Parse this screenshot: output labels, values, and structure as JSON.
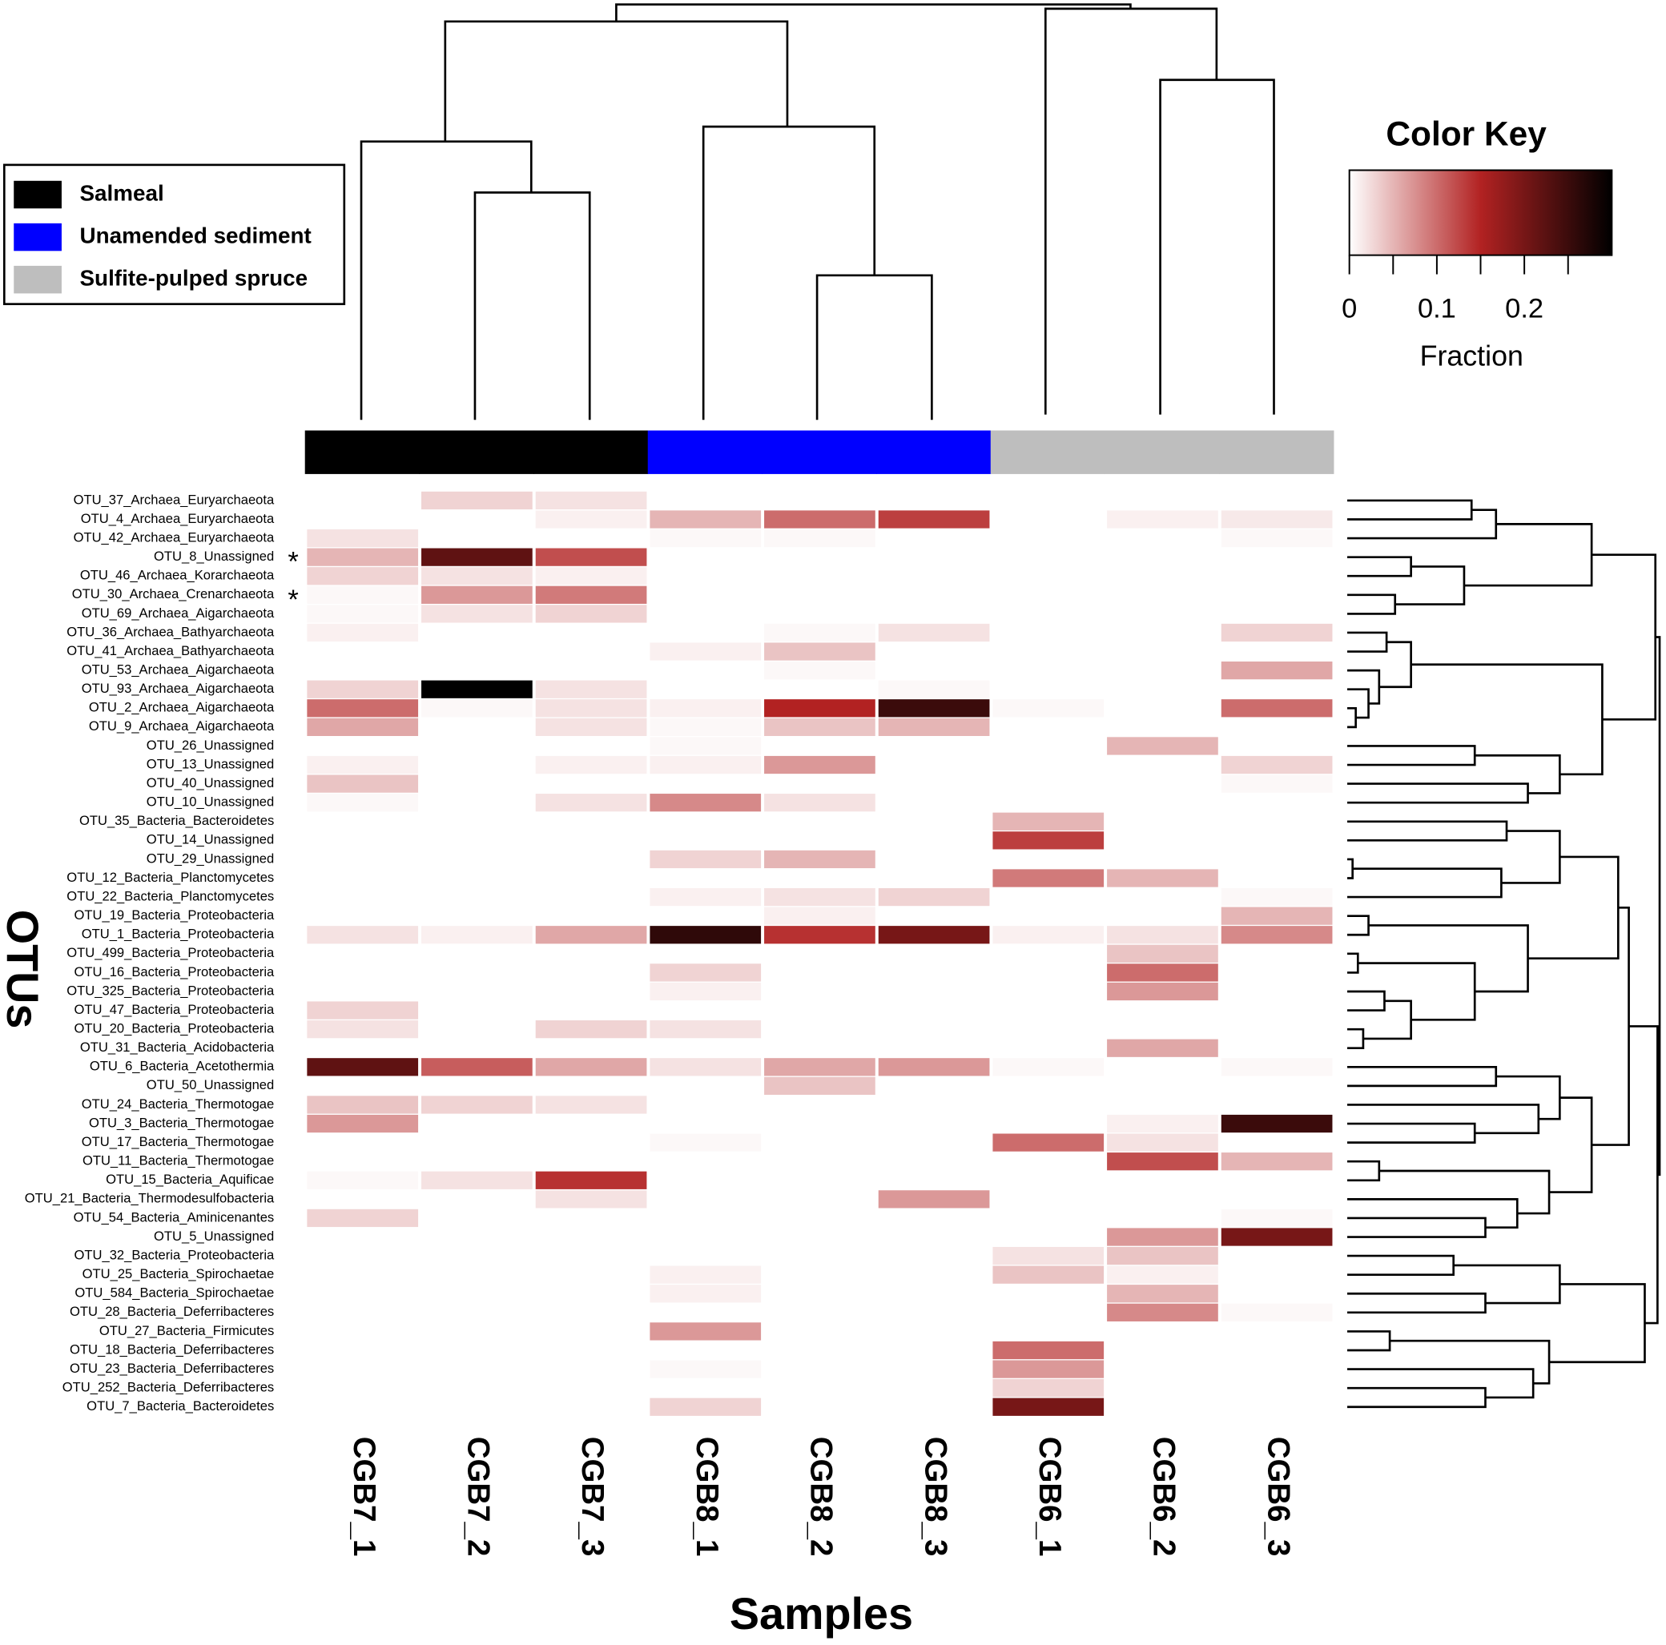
{
  "chart_data": {
    "type": "heatmap",
    "x_label": "Samples",
    "y_label": "OTUs",
    "columns": [
      "CGB7_1",
      "CGB7_2",
      "CGB7_3",
      "CGB8_1",
      "CGB8_2",
      "CGB8_3",
      "CGB6_1",
      "CGB6_2",
      "CGB6_3"
    ],
    "column_groups": [
      "Salmeal",
      "Salmeal",
      "Salmeal",
      "Unamended sediment",
      "Unamended sediment",
      "Unamended sediment",
      "Sulfite-pulped spruce",
      "Sulfite-pulped spruce",
      "Sulfite-pulped spruce"
    ],
    "legend": [
      {
        "name": "Salmeal",
        "color": "#000000"
      },
      {
        "name": "Unamended sediment",
        "color": "#0000ff"
      },
      {
        "name": "Sulfite-pulped spruce",
        "color": "#bebebe"
      }
    ],
    "rows": [
      "OTU_37_Archaea_Euryarchaeota",
      "OTU_4_Archaea_Euryarchaeota",
      "OTU_42_Archaea_Euryarchaeota",
      "OTU_8_Unassigned",
      "OTU_46_Archaea_Korarchaeota",
      "OTU_30_Archaea_Crenarchaeota",
      "OTU_69_Archaea_Aigarchaeota",
      "OTU_36_Archaea_Bathyarchaeota",
      "OTU_41_Archaea_Bathyarchaeota",
      "OTU_53_Archaea_Aigarchaeota",
      "OTU_93_Archaea_Aigarchaeota",
      "OTU_2_Archaea_Aigarchaeota",
      "OTU_9_Archaea_Aigarchaeota",
      "OTU_26_Unassigned",
      "OTU_13_Unassigned",
      "OTU_40_Unassigned",
      "OTU_10_Unassigned",
      "OTU_35_Bacteria_Bacteroidetes",
      "OTU_14_Unassigned",
      "OTU_29_Unassigned",
      "OTU_12_Bacteria_Planctomycetes",
      "OTU_22_Bacteria_Planctomycetes",
      "OTU_19_Bacteria_Proteobacteria",
      "OTU_1_Bacteria_Proteobacteria",
      "OTU_499_Bacteria_Proteobacteria",
      "OTU_16_Bacteria_Proteobacteria",
      "OTU_325_Bacteria_Proteobacteria",
      "OTU_47_Bacteria_Proteobacteria",
      "OTU_20_Bacteria_Proteobacteria",
      "OTU_31_Bacteria_Acidobacteria",
      "OTU_6_Bacteria_Acetothermia",
      "OTU_50_Unassigned",
      "OTU_24_Bacteria_Thermotogae",
      "OTU_3_Bacteria_Thermotogae",
      "OTU_17_Bacteria_Thermotogae",
      "OTU_11_Bacteria_Thermotogae",
      "OTU_15_Bacteria_Aquificae",
      "OTU_21_Bacteria_Thermodesulfobacteria",
      "OTU_54_Bacteria_Aminicenantes",
      "OTU_5_Unassigned",
      "OTU_32_Bacteria_Proteobacteria",
      "OTU_25_Bacteria_Spirochaetae",
      "OTU_584_Bacteria_Spirochaetae",
      "OTU_28_Bacteria_Deferribacteres",
      "OTU_27_Bacteria_Firmicutes",
      "OTU_18_Bacteria_Deferribacteres",
      "OTU_23_Bacteria_Deferribacteres",
      "OTU_252_Bacteria_Deferribacteres",
      "OTU_7_Bacteria_Bacteroidetes"
    ],
    "values": [
      [
        0,
        0.03,
        0.02,
        0,
        0,
        0,
        0,
        0,
        0
      ],
      [
        0,
        0,
        0.01,
        0.05,
        0.1,
        0.13,
        0,
        0.01,
        0.015
      ],
      [
        0.02,
        0,
        0,
        0.005,
        0.005,
        0,
        0,
        0,
        0.005
      ],
      [
        0.05,
        0.22,
        0.12,
        0,
        0,
        0,
        0,
        0,
        0
      ],
      [
        0.03,
        0.02,
        0.01,
        0,
        0,
        0,
        0,
        0,
        0
      ],
      [
        0.005,
        0.07,
        0.09,
        0,
        0,
        0,
        0,
        0,
        0
      ],
      [
        0.005,
        0.02,
        0.03,
        0,
        0,
        0,
        0,
        0,
        0
      ],
      [
        0.01,
        0,
        0,
        0,
        0.005,
        0.02,
        0,
        0,
        0.03
      ],
      [
        0,
        0,
        0,
        0.01,
        0.04,
        0,
        0,
        0,
        0
      ],
      [
        0,
        0,
        0,
        0,
        0.005,
        0,
        0,
        0,
        0.06
      ],
      [
        0.03,
        0.3,
        0.02,
        0,
        0,
        0.005,
        0,
        0,
        0
      ],
      [
        0.1,
        0.005,
        0.02,
        0.01,
        0.15,
        0.25,
        0.005,
        0,
        0.1
      ],
      [
        0.06,
        0,
        0.02,
        0.005,
        0.04,
        0.05,
        0,
        0,
        0
      ],
      [
        0,
        0,
        0,
        0.005,
        0,
        0,
        0,
        0.05,
        0
      ],
      [
        0.01,
        0,
        0.01,
        0.01,
        0.07,
        0,
        0,
        0,
        0.03
      ],
      [
        0.04,
        0,
        0,
        0,
        0,
        0,
        0,
        0,
        0.005
      ],
      [
        0.005,
        0,
        0.02,
        0.08,
        0.02,
        0,
        0,
        0,
        0
      ],
      [
        0,
        0,
        0,
        0,
        0,
        0,
        0.05,
        0,
        0
      ],
      [
        0,
        0,
        0,
        0,
        0,
        0,
        0.13,
        0,
        0
      ],
      [
        0,
        0,
        0,
        0.03,
        0.05,
        0,
        0,
        0,
        0
      ],
      [
        0,
        0,
        0,
        0,
        0,
        0,
        0.09,
        0.05,
        0
      ],
      [
        0,
        0,
        0,
        0.01,
        0.02,
        0.03,
        0,
        0,
        0.005
      ],
      [
        0,
        0,
        0,
        0,
        0.01,
        0,
        0,
        0,
        0.05
      ],
      [
        0.02,
        0.01,
        0.06,
        0.26,
        0.14,
        0.2,
        0.01,
        0.02,
        0.08
      ],
      [
        0,
        0,
        0,
        0,
        0,
        0,
        0,
        0.04,
        0
      ],
      [
        0,
        0,
        0,
        0.03,
        0,
        0,
        0,
        0.1,
        0
      ],
      [
        0,
        0,
        0,
        0.01,
        0,
        0,
        0,
        0.07,
        0
      ],
      [
        0.03,
        0,
        0,
        0,
        0,
        0,
        0,
        0,
        0
      ],
      [
        0.02,
        0,
        0.03,
        0.02,
        0,
        0,
        0,
        0,
        0
      ],
      [
        0,
        0,
        0,
        0,
        0,
        0,
        0,
        0.06,
        0
      ],
      [
        0.22,
        0.11,
        0.06,
        0.02,
        0.06,
        0.07,
        0.005,
        0,
        0.005
      ],
      [
        0,
        0,
        0,
        0,
        0.04,
        0,
        0,
        0,
        0
      ],
      [
        0.04,
        0.03,
        0.02,
        0,
        0,
        0,
        0,
        0,
        0
      ],
      [
        0.07,
        0,
        0,
        0,
        0,
        0,
        0,
        0.01,
        0.25
      ],
      [
        0,
        0,
        0,
        0.005,
        0,
        0,
        0.1,
        0.02,
        0
      ],
      [
        0,
        0,
        0,
        0,
        0,
        0,
        0,
        0.12,
        0.05
      ],
      [
        0.005,
        0.02,
        0.14,
        0,
        0,
        0,
        0,
        0,
        0
      ],
      [
        0,
        0,
        0.02,
        0,
        0,
        0.07,
        0,
        0,
        0
      ],
      [
        0.03,
        0,
        0,
        0,
        0,
        0,
        0,
        0,
        0.005
      ],
      [
        0,
        0,
        0,
        0,
        0,
        0,
        0,
        0.07,
        0.2
      ],
      [
        0,
        0,
        0,
        0,
        0,
        0,
        0.02,
        0.04,
        0
      ],
      [
        0,
        0,
        0,
        0.01,
        0,
        0,
        0.04,
        0.01,
        0
      ],
      [
        0,
        0,
        0,
        0.01,
        0,
        0,
        0,
        0.05,
        0
      ],
      [
        0,
        0,
        0,
        0,
        0,
        0,
        0,
        0.08,
        0.005
      ],
      [
        0,
        0,
        0,
        0.07,
        0,
        0,
        0,
        0,
        0
      ],
      [
        0,
        0,
        0,
        0,
        0,
        0,
        0.1,
        0,
        0
      ],
      [
        0,
        0,
        0,
        0.005,
        0,
        0,
        0.07,
        0,
        0
      ],
      [
        0,
        0,
        0,
        0,
        0,
        0,
        0.03,
        0,
        0
      ],
      [
        0,
        0,
        0,
        0.03,
        0,
        0,
        0.2,
        0,
        0
      ]
    ],
    "annotations": [
      {
        "label": "*",
        "row": "OTU_8_Unassigned"
      },
      {
        "label": "*",
        "row": "OTU_30_Archaea_Crenarchaeota"
      }
    ],
    "colorbar": {
      "title": "Color Key",
      "label": "Fraction",
      "lim": [
        0,
        0.3
      ],
      "ticks": [
        0,
        0.1,
        0.2
      ],
      "minor_ticks": [
        0.05,
        0.15,
        0.25
      ],
      "colors": [
        "#ffffff",
        "#b22222",
        "#000000"
      ]
    }
  }
}
